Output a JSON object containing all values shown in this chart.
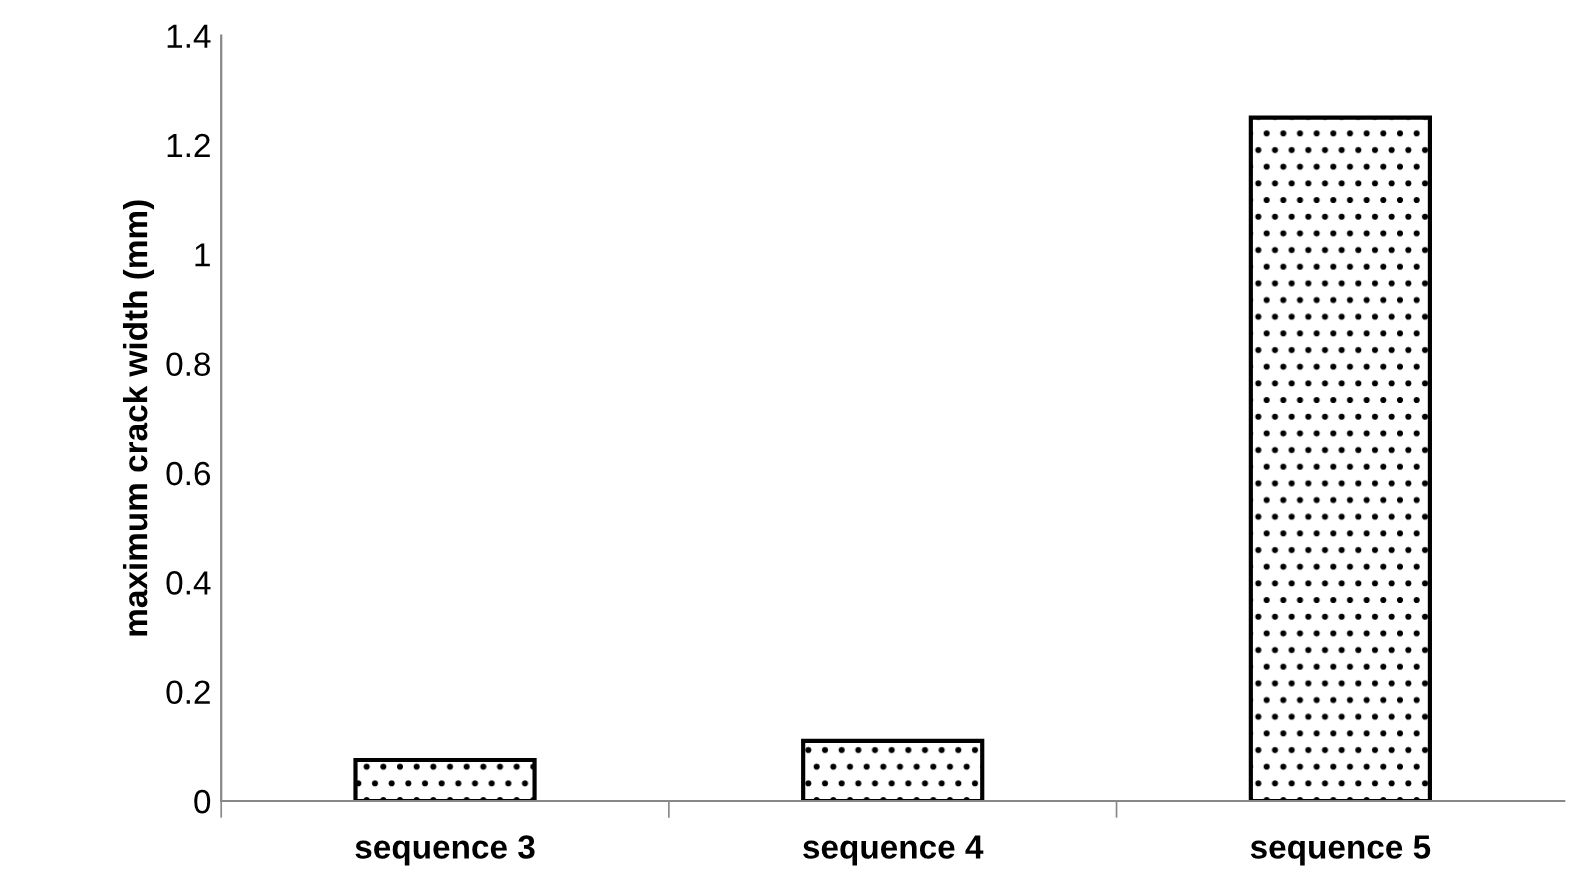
{
  "chart_data": {
    "type": "bar",
    "ylabel": "maximum crack width (mm)",
    "categories": [
      "sequence 3",
      "sequence 4",
      "sequence 5"
    ],
    "values": [
      0.075,
      0.11,
      1.25
    ],
    "color": "#000000",
    "ylim": [
      0,
      1.4
    ],
    "yticks": [
      0,
      0.2,
      0.4,
      0.6,
      0.8,
      1,
      1.2,
      1.4
    ],
    "grid": false
  }
}
